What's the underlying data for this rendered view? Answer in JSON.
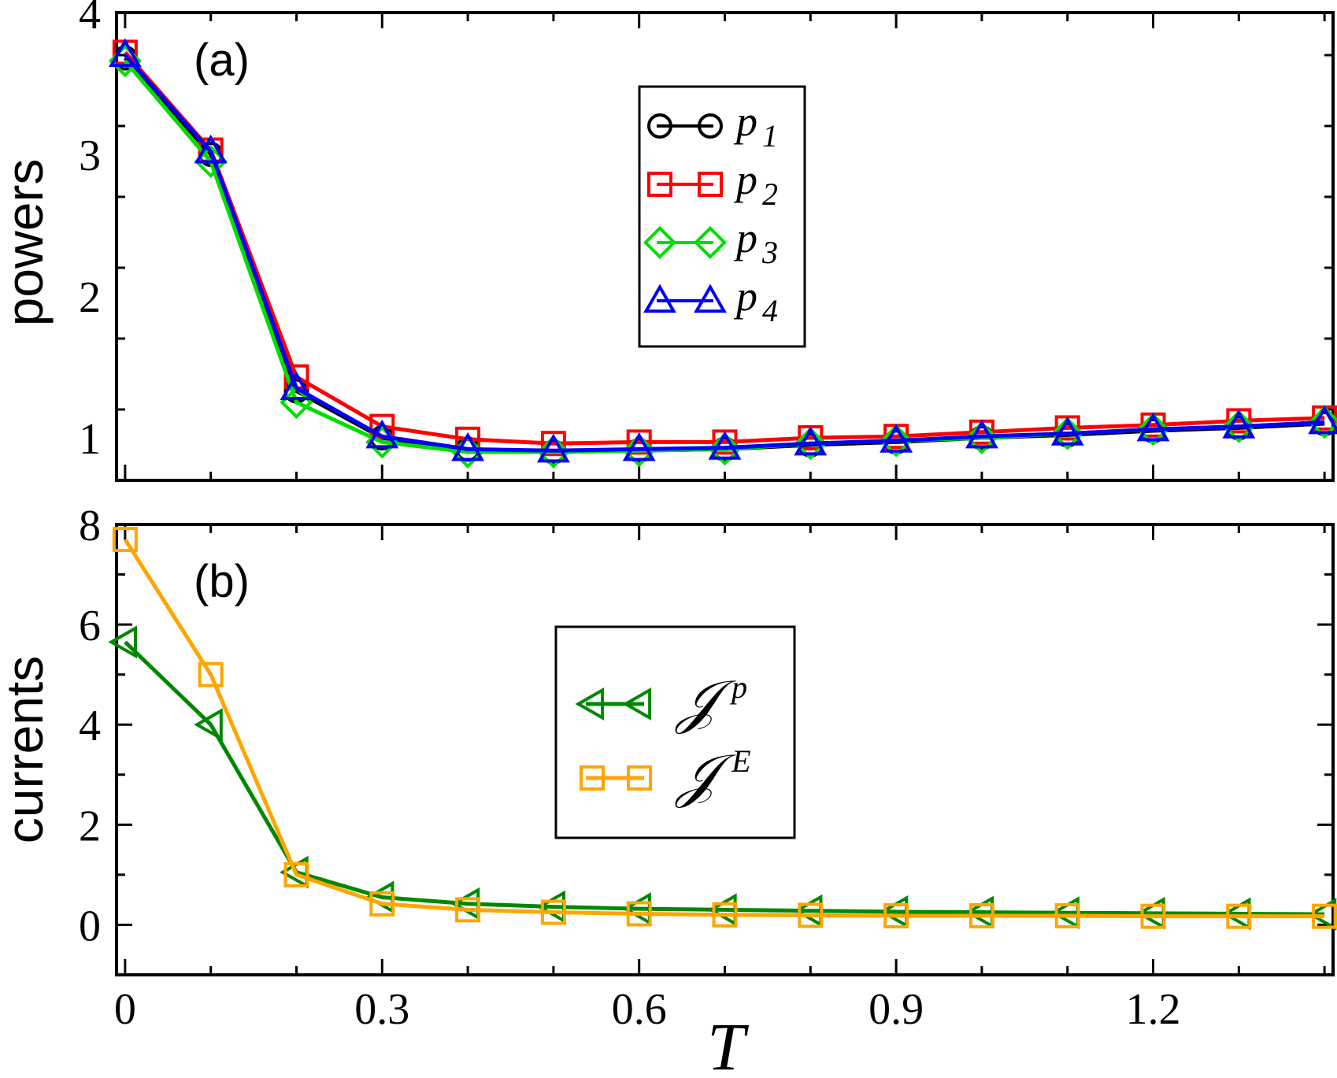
{
  "chart_data": [
    {
      "type": "line",
      "panel_label": "(a)",
      "title": "",
      "xlabel": "",
      "ylabel": "powers",
      "xlim": [
        -0.01,
        1.41
      ],
      "ylim": [
        0.7,
        4.0
      ],
      "yticks": [
        1,
        2,
        3,
        4
      ],
      "ytick_labels": [
        "1",
        "2",
        "3",
        "4"
      ],
      "legend_position": "top-center",
      "x": [
        0,
        0.1,
        0.2,
        0.3,
        0.4,
        0.5,
        0.6,
        0.7,
        0.8,
        0.9,
        1.0,
        1.1,
        1.2,
        1.3,
        1.4
      ],
      "series": [
        {
          "name": "p",
          "subscript": "1",
          "color": "#000000",
          "marker": "circle",
          "values": [
            3.68,
            3.0,
            1.33,
            1.0,
            0.92,
            0.9,
            0.91,
            0.92,
            0.95,
            0.97,
            1.0,
            1.02,
            1.05,
            1.07,
            1.1
          ]
        },
        {
          "name": "p",
          "subscript": "2",
          "color": "#ff0000",
          "marker": "square",
          "values": [
            3.72,
            3.03,
            1.43,
            1.08,
            0.99,
            0.96,
            0.97,
            0.97,
            1.0,
            1.01,
            1.04,
            1.07,
            1.09,
            1.12,
            1.14
          ]
        },
        {
          "name": "p",
          "subscript": "3",
          "color": "#00dd00",
          "marker": "diamond",
          "values": [
            3.66,
            2.95,
            1.25,
            0.97,
            0.9,
            0.9,
            0.91,
            0.92,
            0.96,
            0.98,
            1.0,
            1.03,
            1.06,
            1.08,
            1.11
          ]
        },
        {
          "name": "p",
          "subscript": "4",
          "color": "#0000ff",
          "marker": "triangle-up",
          "values": [
            3.7,
            3.02,
            1.35,
            1.01,
            0.92,
            0.91,
            0.92,
            0.93,
            0.96,
            0.98,
            1.01,
            1.03,
            1.06,
            1.08,
            1.11
          ]
        }
      ]
    },
    {
      "type": "line",
      "panel_label": "(b)",
      "title": "",
      "xlabel": "T",
      "ylabel": "currents",
      "xlim": [
        -0.01,
        1.41
      ],
      "ylim": [
        -1.0,
        8.0
      ],
      "xticks": [
        0,
        0.3,
        0.6,
        0.9,
        1.2
      ],
      "xtick_labels": [
        "0",
        "0.3",
        "0.6",
        "0.9",
        "1.2"
      ],
      "yticks": [
        0,
        2,
        4,
        6,
        8
      ],
      "ytick_labels": [
        "0",
        "2",
        "4",
        "6",
        "8"
      ],
      "legend_position": "center",
      "x": [
        0,
        0.1,
        0.2,
        0.3,
        0.4,
        0.5,
        0.6,
        0.7,
        0.8,
        0.9,
        1.0,
        1.1,
        1.2,
        1.3,
        1.4
      ],
      "series": [
        {
          "name": "𝒥",
          "superscript": "p",
          "color": "#008800",
          "marker": "triangle-left",
          "values": [
            5.65,
            4.0,
            1.05,
            0.55,
            0.42,
            0.36,
            0.32,
            0.3,
            0.28,
            0.26,
            0.25,
            0.24,
            0.23,
            0.22,
            0.21
          ]
        },
        {
          "name": "𝒥",
          "superscript": "E",
          "color": "#ffa500",
          "marker": "square",
          "values": [
            7.7,
            5.0,
            1.0,
            0.42,
            0.3,
            0.25,
            0.22,
            0.2,
            0.19,
            0.18,
            0.18,
            0.18,
            0.17,
            0.17,
            0.17
          ]
        }
      ]
    }
  ]
}
